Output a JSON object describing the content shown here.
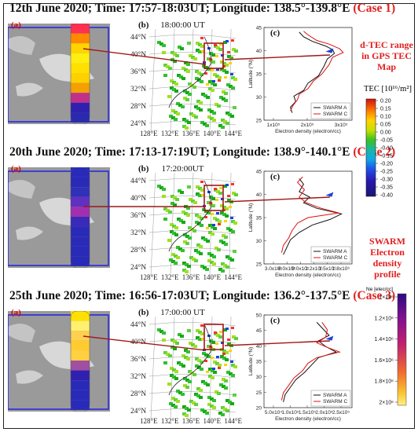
{
  "cases": [
    {
      "title": "12th June 2020; Time: 17:57-18:03UT; Longitude: 138.5°-139.8°E",
      "tag": "(Case 1)",
      "map_time": "18:00:00 UT",
      "c_xticks": [
        "1x10⁵",
        "2x10⁵",
        "3x10⁵"
      ],
      "c_yticks": [
        "25",
        "30",
        "35",
        "40",
        "45"
      ],
      "c_legend": [
        "SWARM A",
        "SWARM C"
      ],
      "c_xlabel": "Electron density (electron/cc)",
      "c_ylabel": "Latitude (°N)"
    },
    {
      "title": "20th June 2020; Time: 17:13-17:19UT; Longitude: 138.9°-140.1°E",
      "tag": "(Case 2)",
      "map_time": "17:20:00UT",
      "c_xticks": [
        "3.0x10⁵",
        "6.0x10⁵",
        "9.0x10⁵",
        "1.2x10⁶",
        "1.5x10⁶",
        "1.8x10⁶"
      ],
      "c_yticks": [
        "25",
        "30",
        "35",
        "40",
        "45"
      ],
      "c_legend": [
        "SWARM A",
        "SWARM C"
      ],
      "c_xlabel": "Electron density (electron/cc)",
      "c_ylabel": "Latitude (°N)"
    },
    {
      "title": "25th June 2020; Time: 16:56-17:03UT; Longitude: 136.2°-137.5°E",
      "tag": "(Case 3)",
      "map_time": "17:00:00 UT",
      "c_xticks": [
        "5.0x10⁴",
        "1.0x10⁵",
        "1.5x10⁵",
        "2.0x10⁵",
        "2.5x10⁵"
      ],
      "c_yticks": [
        "20",
        "25",
        "30",
        "35",
        "40",
        "45",
        "50"
      ],
      "c_legend": [
        "SWARM A",
        "SWARM C"
      ],
      "c_xlabel": "Electron density (electron/cc)",
      "c_ylabel": "Latitude (°N)"
    }
  ],
  "panel_labels": {
    "a": "(a)",
    "b": "(b)",
    "c": "(c)"
  },
  "lat_labels": [
    "44°N",
    "40°N",
    "36°N",
    "32°N",
    "28°N",
    "24°N"
  ],
  "lon_labels": [
    "128°E",
    "132°E",
    "136°E",
    "140°E",
    "144°E"
  ],
  "right": {
    "dtec_title": "d-TEC range in GPS TEC Map",
    "tec_unit": "TEC [10¹⁶/m²]",
    "tec_ticks": [
      "0.20",
      "0.15",
      "0.10",
      "0.05",
      "0.00",
      "-0.05",
      "-0.10",
      "-0.15",
      "-0.20",
      "-0.25",
      "-0.30",
      "-0.35",
      "-0.40"
    ],
    "swarm_title": "SWARM Electron density profile",
    "ne_unit": "Ne [elec/cc]",
    "ne_ticks": [
      "1×10⁶",
      "1.2×10⁶",
      "1.4×10⁶",
      "1.6×10⁶",
      "1.8×10⁶",
      "2×10⁶"
    ]
  },
  "colors": {
    "case_tag": "#e02020",
    "connector": "#a01818",
    "swarm_a": "#111111",
    "swarm_c": "#e01010",
    "track_box": "#2a2ae0"
  }
}
